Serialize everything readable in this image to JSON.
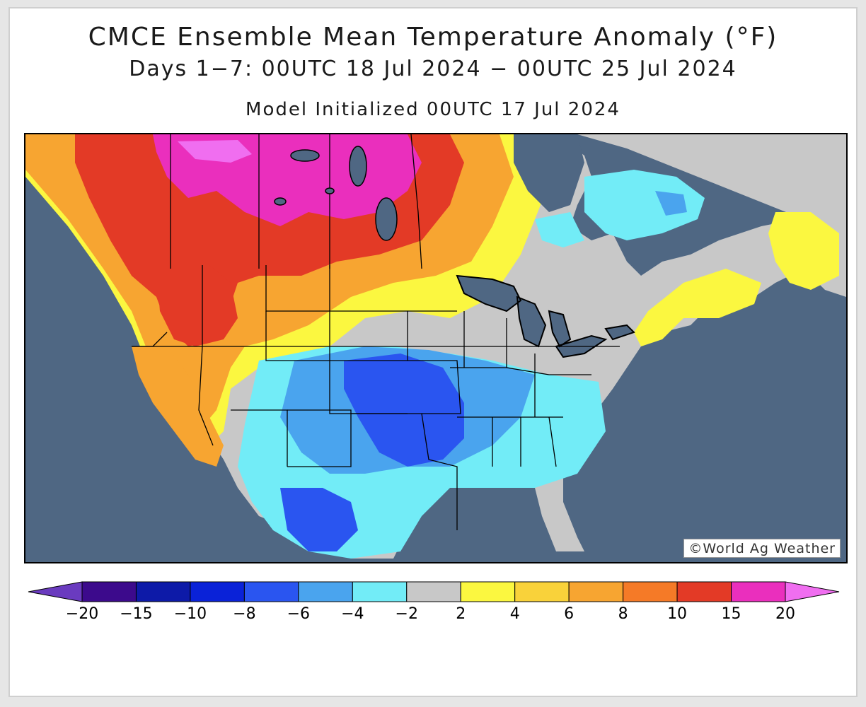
{
  "title": "CMCE Ensemble Mean Temperature Anomaly (°F)",
  "subtitle": "Days 1−7: 00UTC 18 Jul 2024 − 00UTC 25 Jul 2024",
  "init_line": "Model Initialized 00UTC 17 Jul 2024",
  "credit": "©World Ag Weather",
  "colors": {
    "ocean": "#4f6783",
    "neutral": "#c8c8c8"
  },
  "legend": {
    "colors": [
      "#6a3bbf",
      "#3c0a8c",
      "#0d1aa8",
      "#0a22d8",
      "#2a55f0",
      "#4aa4ee",
      "#72ecf7",
      "#c8c8c8",
      "#fbf740",
      "#f9d23a",
      "#f7a531",
      "#f57a27",
      "#e33a26",
      "#ea2fbd",
      "#f06ef0"
    ],
    "labels": [
      "−20",
      "−15",
      "−10",
      "−8",
      "−6",
      "−4",
      "−2",
      "2",
      "4",
      "6",
      "8",
      "10",
      "15",
      "20"
    ]
  }
}
